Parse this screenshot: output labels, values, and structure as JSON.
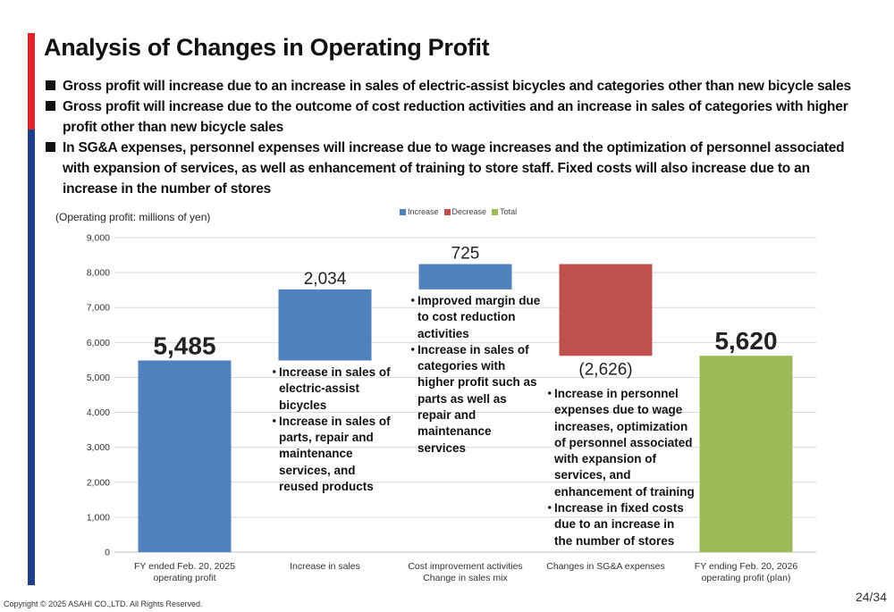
{
  "title": "Analysis of Changes in Operating Profit",
  "bullets": [
    "Gross profit will increase due to an increase in sales of electric-assist bicycles and categories other than new bicycle sales",
    "Gross profit will increase due to the outcome of cost reduction activities and an increase in sales of categories with higher profit other than new bicycle sales",
    "In SG&A expenses, personnel expenses will increase due to wage increases and the optimization of personnel associated with expansion of services, as well as enhancement of training to store staff. Fixed costs will also increase due to an increase in the number of stores"
  ],
  "unit_label": "(Operating profit: millions of yen)",
  "legend": [
    {
      "label": "Increase",
      "color": "#4f81bd"
    },
    {
      "label": "Decrease",
      "color": "#c0504d"
    },
    {
      "label": "Total",
      "color": "#9bbb59"
    }
  ],
  "callouts": [
    [
      "Increase in sales of electric-assist bicycles",
      "Increase in sales of parts, repair and maintenance services, and reused products"
    ],
    [
      "Improved margin due to cost reduction activities",
      "Increase in sales of categories with higher profit such as parts as well as repair and maintenance services"
    ],
    [
      "Increase in personnel expenses due to wage increases, optimization of personnel associated with expansion of services, and enhancement of training",
      "Increase in fixed costs due to an increase in the number of stores"
    ]
  ],
  "bullet_dot": "・",
  "chart_data": {
    "type": "bar",
    "subtype": "waterfall",
    "categories": [
      [
        "FY ended Feb. 20, 2025",
        "operating profit"
      ],
      [
        "Increase in sales"
      ],
      [
        "Cost improvement activities",
        "Change in sales mix"
      ],
      [
        "Changes in SG&A expenses"
      ],
      [
        "FY ending Feb. 20, 2026",
        "operating profit (plan)"
      ]
    ],
    "steps": [
      {
        "kind": "total",
        "value": 5485,
        "label": "5,485"
      },
      {
        "kind": "increase",
        "value": 2034,
        "label": "2,034"
      },
      {
        "kind": "increase",
        "value": 725,
        "label": "725"
      },
      {
        "kind": "decrease",
        "value": -2626,
        "label": "(2,626)"
      },
      {
        "kind": "total",
        "value": 5620,
        "label": "5,620"
      }
    ],
    "colors": {
      "total_start": "#4f81bd",
      "increase": "#4f81bd",
      "decrease": "#c0504d",
      "total_end": "#9bbb59"
    },
    "ylim": [
      0,
      9000
    ],
    "yticks": [
      "0",
      "1,000",
      "2,000",
      "3,000",
      "4,000",
      "5,000",
      "6,000",
      "7,000",
      "8,000",
      "9,000"
    ],
    "grid": true,
    "legend_position": "top-center"
  },
  "copyright": "Copyright © 2025 ASAHI CO.,LTD. All Rights Reserved.",
  "page_number": "24/34"
}
